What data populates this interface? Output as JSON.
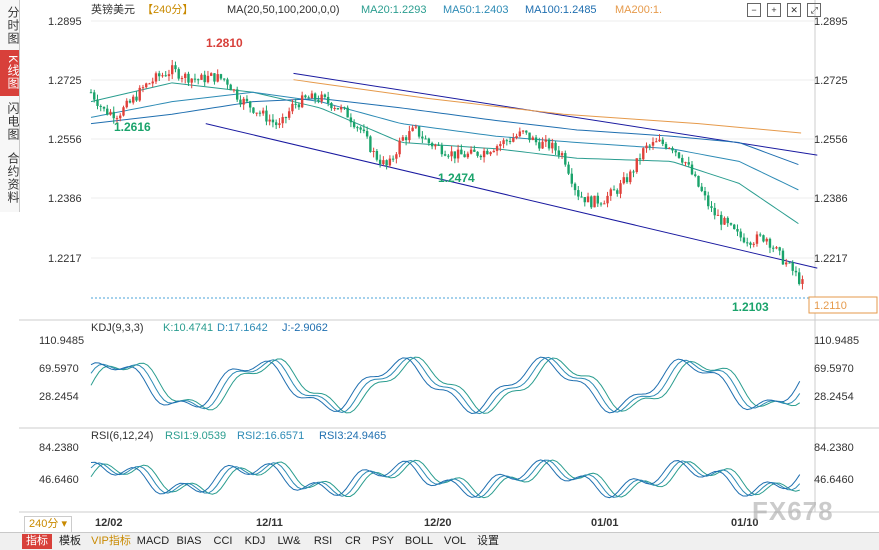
{
  "left_tabs": [
    {
      "label": "分时图",
      "active": false
    },
    {
      "label": "K线图",
      "active": true
    },
    {
      "label": "闪电图",
      "active": false
    },
    {
      "label": "合约资料",
      "active": false
    }
  ],
  "header": {
    "symbol": "英镑美元",
    "period_tag": "【240分】",
    "ma_label": "MA(20,50,100,200,0,0)",
    "ma20": "MA20:1.2293",
    "ma50": "MA50:1.2403",
    "ma100": "MA100:1.2485",
    "ma200": "MA200:1."
  },
  "kdj_header": {
    "name": "KDJ(9,3,3)",
    "k": "K:10.4741",
    "d": "D:17.1642",
    "j": "J:-2.9062"
  },
  "rsi_header": {
    "name": "RSI(6,12,24)",
    "rsi1": "RSI1:9.0539",
    "rsi2": "RSI2:16.6571",
    "rsi3": "RSI3:24.9465"
  },
  "price_axis": [
    "1.2895",
    "1.2725",
    "1.2556",
    "1.2386",
    "1.2217"
  ],
  "current_price": "1.2110",
  "kdj_axis": [
    "110.9485",
    "69.5970",
    "28.2454"
  ],
  "rsi_axis": [
    "84.2380",
    "46.6460"
  ],
  "x_labels": [
    "12/02",
    "12/11",
    "12/20",
    "01/01",
    "01/10"
  ],
  "annotations": {
    "high": "1.2810",
    "low1": "1.2616",
    "low2": "1.2474",
    "low3": "1.2103"
  },
  "period_selector": "240分",
  "bottom_tabs": [
    {
      "label": "指标",
      "active": true,
      "vip": false
    },
    {
      "label": "模板",
      "active": false,
      "vip": false
    },
    {
      "label": "VIP指标",
      "active": false,
      "vip": true
    },
    {
      "label": "MACD",
      "active": false,
      "vip": false
    },
    {
      "label": "BIAS",
      "active": false,
      "vip": false
    },
    {
      "label": "CCI",
      "active": false,
      "vip": false
    },
    {
      "label": "KDJ",
      "active": false,
      "vip": false
    },
    {
      "label": "LW&",
      "active": false,
      "vip": false
    },
    {
      "label": "RSI",
      "active": false,
      "vip": false
    },
    {
      "label": "CR",
      "active": false,
      "vip": false
    },
    {
      "label": "PSY",
      "active": false,
      "vip": false
    },
    {
      "label": "BOLL",
      "active": false,
      "vip": false
    },
    {
      "label": "VOL",
      "active": false,
      "vip": false
    },
    {
      "label": "设置",
      "active": false,
      "vip": false
    }
  ],
  "watermark": "FX678",
  "colors": {
    "up": "#e0413a",
    "down": "#1aa36b",
    "ma20": "#2a9d8f",
    "ma50": "#2d8bb5",
    "ma100": "#1f6fb0",
    "ma200": "#e69a4b",
    "channel": "#1a1aa0",
    "accent": "#d8403a",
    "vip": "#c98a00"
  },
  "chart_data": {
    "type": "candlestick",
    "price_range": [
      1.2065,
      1.295
    ],
    "close_path": [
      [
        0,
        1.272
      ],
      [
        10,
        1.266
      ],
      [
        20,
        1.265
      ],
      [
        30,
        1.269
      ],
      [
        40,
        1.274
      ],
      [
        50,
        1.277
      ],
      [
        60,
        1.279
      ],
      [
        70,
        1.277
      ],
      [
        80,
        1.276
      ],
      [
        90,
        1.277
      ],
      [
        100,
        1.276
      ],
      [
        110,
        1.27
      ],
      [
        120,
        1.267
      ],
      [
        130,
        1.264
      ],
      [
        140,
        1.261
      ],
      [
        150,
        1.268
      ],
      [
        160,
        1.27
      ],
      [
        170,
        1.27
      ],
      [
        180,
        1.268
      ],
      [
        190,
        1.265
      ],
      [
        200,
        1.26
      ],
      [
        210,
        1.252
      ],
      [
        220,
        1.248
      ],
      [
        230,
        1.257
      ],
      [
        240,
        1.26
      ],
      [
        250,
        1.256
      ],
      [
        260,
        1.254
      ],
      [
        270,
        1.252
      ],
      [
        280,
        1.252
      ],
      [
        290,
        1.253
      ],
      [
        300,
        1.255
      ],
      [
        310,
        1.257
      ],
      [
        320,
        1.259
      ],
      [
        330,
        1.256
      ],
      [
        340,
        1.255
      ],
      [
        350,
        1.252
      ],
      [
        360,
        1.24
      ],
      [
        370,
        1.237
      ],
      [
        380,
        1.238
      ],
      [
        390,
        1.241
      ],
      [
        400,
        1.246
      ],
      [
        410,
        1.254
      ],
      [
        420,
        1.256
      ],
      [
        430,
        1.255
      ],
      [
        440,
        1.25
      ],
      [
        450,
        1.242
      ],
      [
        460,
        1.234
      ],
      [
        470,
        1.23
      ],
      [
        480,
        1.226
      ],
      [
        490,
        1.225
      ],
      [
        500,
        1.226
      ],
      [
        510,
        1.22
      ],
      [
        520,
        1.215
      ],
      [
        527,
        1.211
      ]
    ],
    "bars_count": 220,
    "ma20": [
      [
        0,
        1.269
      ],
      [
        60,
        1.275
      ],
      [
        120,
        1.272
      ],
      [
        170,
        1.267
      ],
      [
        230,
        1.256
      ],
      [
        300,
        1.254
      ],
      [
        360,
        1.251
      ],
      [
        430,
        1.25
      ],
      [
        480,
        1.243
      ],
      [
        527,
        1.2293
      ]
    ],
    "ma50": [
      [
        0,
        1.264
      ],
      [
        60,
        1.269
      ],
      [
        120,
        1.272
      ],
      [
        170,
        1.269
      ],
      [
        230,
        1.262
      ],
      [
        300,
        1.258
      ],
      [
        360,
        1.256
      ],
      [
        430,
        1.254
      ],
      [
        480,
        1.25
      ],
      [
        527,
        1.2403
      ]
    ],
    "ma100": [
      [
        0,
        1.262
      ],
      [
        60,
        1.265
      ],
      [
        120,
        1.269
      ],
      [
        170,
        1.27
      ],
      [
        230,
        1.267
      ],
      [
        300,
        1.263
      ],
      [
        360,
        1.26
      ],
      [
        430,
        1.258
      ],
      [
        480,
        1.256
      ],
      [
        527,
        1.2485
      ]
    ],
    "ma200": [
      [
        150,
        1.276
      ],
      [
        250,
        1.27
      ],
      [
        350,
        1.265
      ],
      [
        450,
        1.262
      ],
      [
        527,
        1.259
      ]
    ],
    "channel_upper": [
      [
        150,
        1.278
      ],
      [
        538,
        1.252
      ]
    ],
    "channel_lower": [
      [
        85,
        1.262
      ],
      [
        538,
        1.216
      ]
    ],
    "kdj_range": [
      0,
      130
    ],
    "rsi_range": [
      15,
      100
    ]
  }
}
